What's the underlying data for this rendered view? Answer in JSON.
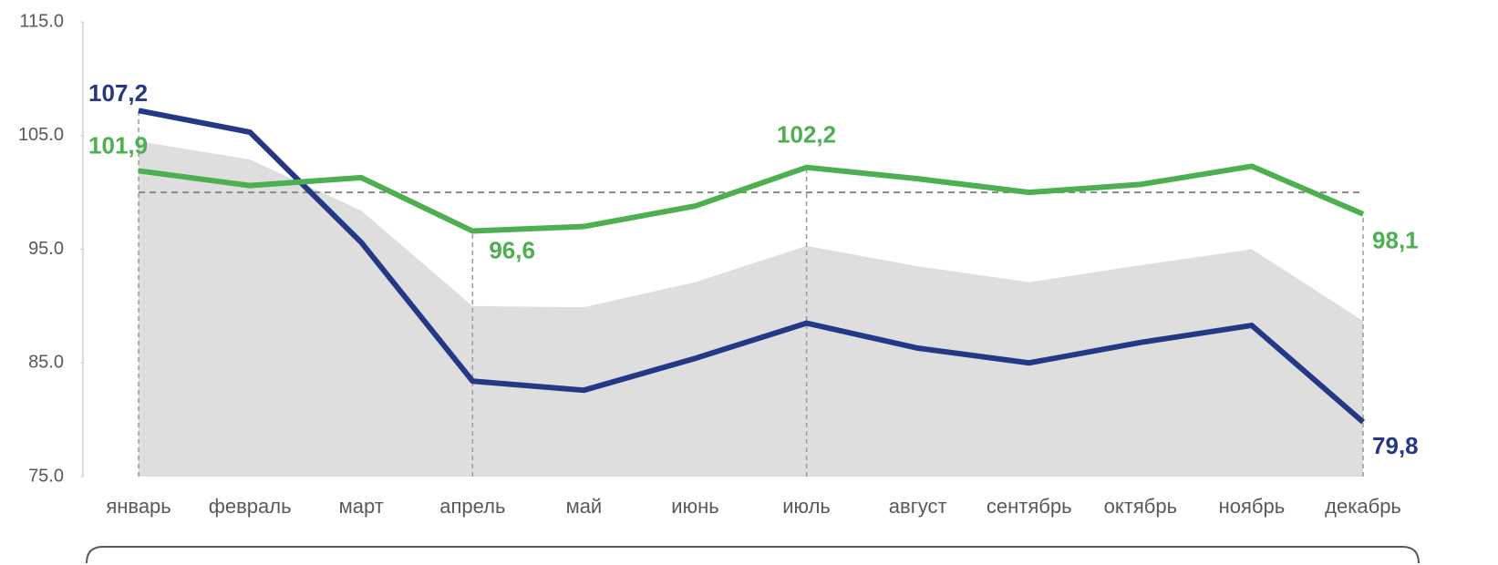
{
  "chart_data": {
    "type": "line",
    "categories": [
      "январь",
      "февраль",
      "март",
      "апрель",
      "май",
      "июнь",
      "июль",
      "август",
      "сентябрь",
      "октябрь",
      "ноябрь",
      "декабрь"
    ],
    "ylim": [
      75,
      115
    ],
    "yticks": [
      {
        "value": 75,
        "label": "75.0"
      },
      {
        "value": 85,
        "label": "85.0"
      },
      {
        "value": 95,
        "label": "95.0"
      },
      {
        "value": 105,
        "label": "105.0"
      },
      {
        "value": 115,
        "label": "115.0"
      }
    ],
    "reference_line": 100,
    "area": {
      "color": "#dedede",
      "values": [
        104.5,
        102.9,
        98.4,
        90.0,
        89.9,
        92.1,
        95.3,
        93.5,
        92.1,
        93.6,
        95.0,
        88.7
      ]
    },
    "series": [
      {
        "color": "#253885",
        "values": [
          107.2,
          105.3,
          95.6,
          83.4,
          82.6,
          85.4,
          88.5,
          86.3,
          85.0,
          86.8,
          88.3,
          79.8
        ],
        "value_labels": [
          "107,2",
          null,
          null,
          null,
          null,
          null,
          null,
          null,
          null,
          null,
          null,
          "79,8"
        ]
      },
      {
        "color": "#4caf50",
        "values": [
          101.9,
          100.6,
          101.3,
          96.6,
          97.0,
          98.8,
          102.2,
          101.2,
          100.0,
          100.7,
          102.3,
          98.1
        ],
        "value_labels": [
          "101,9",
          null,
          null,
          "96,6",
          null,
          null,
          "102,2",
          null,
          null,
          null,
          null,
          "98,1"
        ]
      }
    ]
  }
}
